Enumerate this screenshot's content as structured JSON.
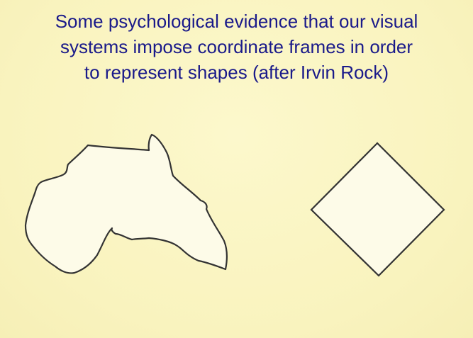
{
  "slide": {
    "title_lines": [
      "Some psychological evidence that our visual",
      "systems impose coordinate frames in order",
      "to represent shapes (after Irvin Rock)"
    ]
  },
  "figures": [
    {
      "shape": "irregular-blob",
      "fill": "#fdfbe8",
      "stroke": "#333333"
    },
    {
      "shape": "diamond",
      "fill": "#fdfbe8",
      "stroke": "#333333"
    }
  ],
  "colors": {
    "background": "#fbf6c2",
    "title_text": "#1a1a8a"
  }
}
